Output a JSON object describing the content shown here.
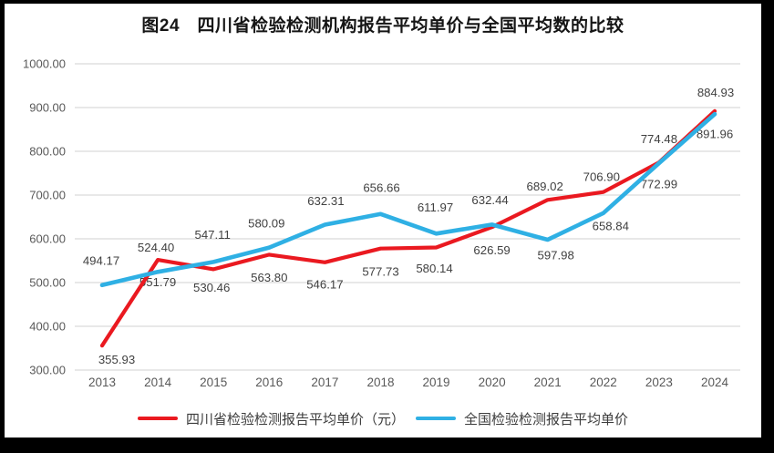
{
  "chart_data": {
    "type": "line",
    "title": "图24　四川省检验检测机构报告平均单价与全国平均数的比较",
    "categories": [
      "2013",
      "2014",
      "2015",
      "2016",
      "2017",
      "2018",
      "2019",
      "2020",
      "2021",
      "2022",
      "2023",
      "2024"
    ],
    "xlabel": "",
    "ylabel": "",
    "ylim": [
      300,
      1000
    ],
    "y_ticks": [
      "300.00",
      "400.00",
      "500.00",
      "600.00",
      "700.00",
      "800.00",
      "900.00",
      "1000.00"
    ],
    "grid": true,
    "legend_position": "bottom",
    "colors": {
      "sichuan_red": "#ea1920",
      "national_blue": "#2fb0e4",
      "gridline": "#d9d9d9",
      "axis_text": "#595959",
      "data_label_text": "#404040"
    },
    "series": [
      {
        "name": "四川省检验检测报告平均单价（元）",
        "color": "#ea1920",
        "values": [
          355.93,
          551.79,
          530.46,
          563.8,
          546.17,
          577.73,
          580.14,
          626.59,
          689.02,
          706.9,
          774.48,
          891.96
        ],
        "label_offsets": [
          [
            16,
            15
          ],
          [
            0,
            24
          ],
          [
            -2,
            20
          ],
          [
            0,
            25
          ],
          [
            0,
            24
          ],
          [
            0,
            25
          ],
          [
            -2,
            23
          ],
          [
            0,
            25
          ],
          [
            -3,
            -15
          ],
          [
            -2,
            -17
          ],
          [
            0,
            -26
          ],
          [
            0,
            25
          ]
        ]
      },
      {
        "name": "全国检验检测报告平均单价",
        "color": "#2fb0e4",
        "values": [
          494.17,
          524.4,
          547.11,
          580.09,
          632.31,
          656.66,
          611.97,
          632.44,
          597.98,
          658.84,
          772.99,
          884.93
        ],
        "label_offsets": [
          [
            -1,
            -27
          ],
          [
            -2,
            -27
          ],
          [
            -1,
            -30
          ],
          [
            -3,
            -27
          ],
          [
            1,
            -26
          ],
          [
            1,
            -29
          ],
          [
            -1,
            -29
          ],
          [
            -2,
            -27
          ],
          [
            9,
            17
          ],
          [
            8,
            14
          ],
          [
            0,
            23
          ],
          [
            1,
            -24
          ]
        ]
      }
    ]
  }
}
